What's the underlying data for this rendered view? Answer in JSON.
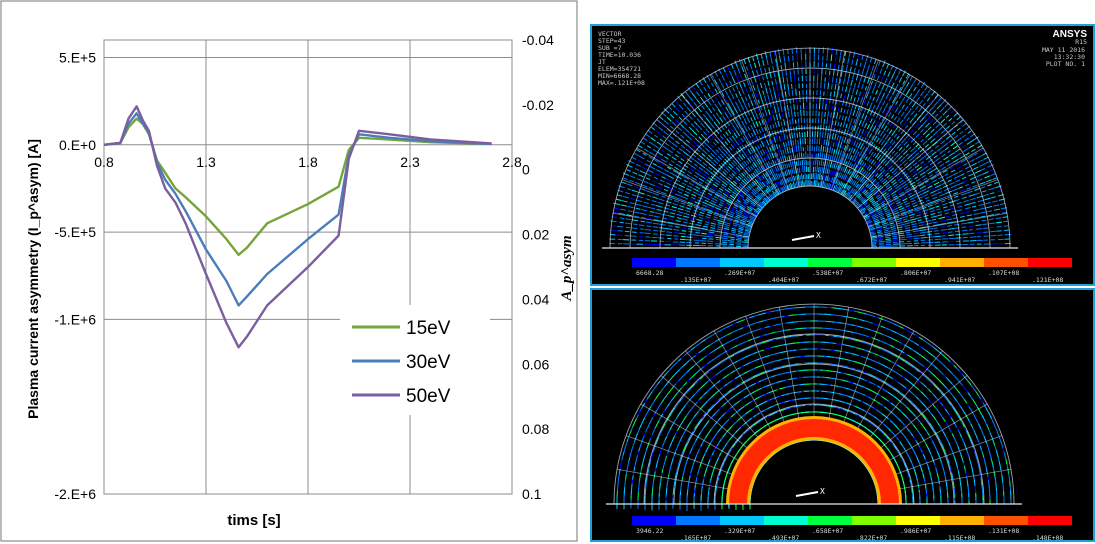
{
  "chart_data": {
    "type": "line",
    "xlabel": "tims [s]",
    "ylabel": "Plasma current asymmetry (I_p^asym) [A]",
    "y2label": "A_p^asym",
    "xlim": [
      0.8,
      2.8
    ],
    "ylim": [
      -2000000,
      600000
    ],
    "y2lim": [
      -0.04,
      0.1
    ],
    "y2_inverted": true,
    "x_ticks": [
      "0.8",
      "1.3",
      "1.8",
      "2.3",
      "2.8"
    ],
    "y_ticks": [
      {
        "value": 500000,
        "label": "5.E+5"
      },
      {
        "value": 0,
        "label": "0.E+0"
      },
      {
        "value": -500000,
        "label": "-5.E+5"
      },
      {
        "value": -1000000,
        "label": "-1.E+6"
      },
      {
        "value": -2000000,
        "label": "-2.E+6"
      }
    ],
    "y2_ticks": [
      "-0.04",
      "-0.02",
      "0",
      "0.02",
      "0.04",
      "0.06",
      "0.08",
      "0.1"
    ],
    "grid": true,
    "legend_position": "center-right",
    "series": [
      {
        "name": "15eV",
        "color": "#77a33b",
        "x": [
          0.8,
          0.88,
          0.92,
          0.96,
          0.99,
          1.02,
          1.06,
          1.1,
          1.15,
          1.2,
          1.3,
          1.4,
          1.46,
          1.5,
          1.6,
          1.8,
          1.95,
          2.0,
          2.05,
          2.2,
          2.4,
          2.7
        ],
        "y": [
          0,
          10000,
          100000,
          150000,
          120000,
          60000,
          -90000,
          -160000,
          -250000,
          -300000,
          -410000,
          -540000,
          -630000,
          -590000,
          -450000,
          -340000,
          -240000,
          -30000,
          40000,
          30000,
          15000,
          5000
        ]
      },
      {
        "name": "30eV",
        "color": "#4a7ebb",
        "x": [
          0.8,
          0.88,
          0.92,
          0.96,
          0.99,
          1.02,
          1.06,
          1.1,
          1.15,
          1.2,
          1.3,
          1.4,
          1.46,
          1.5,
          1.6,
          1.8,
          1.95,
          2.0,
          2.05,
          2.2,
          2.4,
          2.7
        ],
        "y": [
          0,
          10000,
          120000,
          180000,
          120000,
          70000,
          -100000,
          -200000,
          -280000,
          -380000,
          -600000,
          -780000,
          -920000,
          -870000,
          -740000,
          -540000,
          -400000,
          -60000,
          60000,
          40000,
          20000,
          5000
        ]
      },
      {
        "name": "50eV",
        "color": "#7b5ea0",
        "x": [
          0.8,
          0.88,
          0.92,
          0.96,
          0.99,
          1.02,
          1.06,
          1.1,
          1.15,
          1.2,
          1.3,
          1.4,
          1.46,
          1.5,
          1.6,
          1.8,
          1.95,
          2.0,
          2.05,
          2.2,
          2.4,
          2.7
        ],
        "y": [
          0,
          10000,
          150000,
          220000,
          140000,
          80000,
          -120000,
          -250000,
          -330000,
          -450000,
          -740000,
          -1020000,
          -1160000,
          -1100000,
          -920000,
          -700000,
          -520000,
          -80000,
          80000,
          60000,
          30000,
          8000
        ]
      }
    ]
  },
  "ansys_top": {
    "header_left": [
      "VECTOR",
      "STEP=43",
      "SUB =7",
      "TIME=10.036",
      "JT",
      "ELEM=354721",
      "MIN=6668.28",
      "MAX=.121E+08"
    ],
    "logo": "ANSYS",
    "release": "R15",
    "header_right": [
      "MAY 11 2016",
      "13:32:30",
      "PLOT NO. 1"
    ],
    "colorbar_top": [
      "6668.28",
      ".269E+07",
      ".538E+07",
      ".806E+07",
      ".107E+08"
    ],
    "colorbar_bottom": [
      ".135E+07",
      ".404E+07",
      ".672E+07",
      ".941E+07",
      ".121E+08"
    ]
  },
  "ansys_bottom": {
    "colorbar_top": [
      "3946.22",
      ".329E+07",
      ".658E+07",
      ".986E+07",
      ".131E+08"
    ],
    "colorbar_bottom": [
      ".165E+07",
      ".493E+07",
      ".822E+07",
      ".115E+08",
      ".148E+08"
    ]
  },
  "colormap": [
    "#0000ff",
    "#0078ff",
    "#00c8ff",
    "#00ffd0",
    "#00ff40",
    "#80ff00",
    "#ffff00",
    "#ffb000",
    "#ff5000",
    "#ff0000"
  ]
}
